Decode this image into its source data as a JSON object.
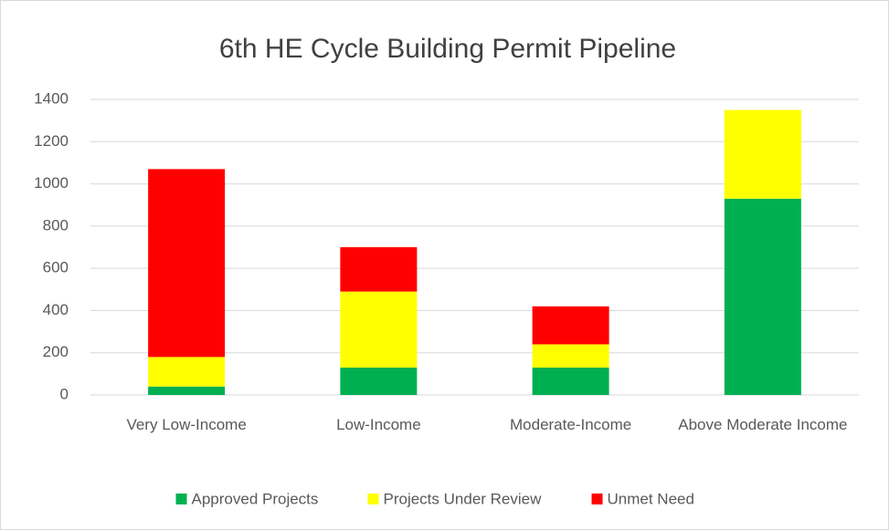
{
  "chart_data": {
    "type": "stacked_bar",
    "title": "6th HE Cycle Building Permit Pipeline",
    "categories": [
      "Very Low-Income",
      "Low-Income",
      "Moderate-Income",
      "Above Moderate Income"
    ],
    "series": [
      {
        "name": "Approved Projects",
        "color": "#00b050",
        "values": [
          40,
          130,
          130,
          930
        ]
      },
      {
        "name": "Projects Under Review",
        "color": "#ffff00",
        "values": [
          140,
          360,
          110,
          420
        ]
      },
      {
        "name": "Unmet Need",
        "color": "#ff0000",
        "values": [
          890,
          210,
          180,
          0
        ]
      }
    ],
    "ylim": [
      0,
      1400
    ],
    "yticks": [
      0,
      200,
      400,
      600,
      800,
      1000,
      1200,
      1400
    ],
    "grid": true,
    "legend": "bottom"
  }
}
